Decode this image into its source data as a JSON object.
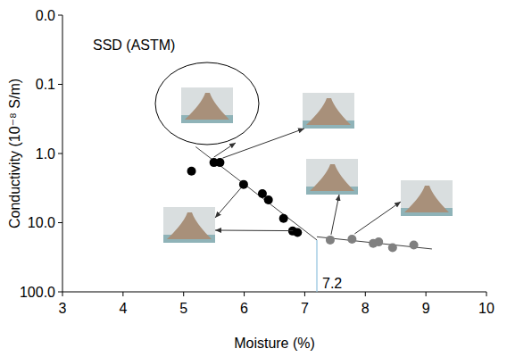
{
  "chart_data": {
    "type": "scatter",
    "x_label": "Moisture (%)",
    "y_label": "Conductivity (10⁻⁸ S/m)",
    "log": "y",
    "grid": false,
    "xlim": [
      3,
      10
    ],
    "xticks": [
      3,
      4,
      5,
      6,
      7,
      8,
      9,
      10
    ],
    "ylim": [
      100,
      0.01
    ],
    "yticks": [
      {
        "value": 0.01,
        "label": "0.0"
      },
      {
        "value": 0.1,
        "label": "0.1"
      },
      {
        "value": 1,
        "label": "1.0"
      },
      {
        "value": 10,
        "label": "10.0"
      },
      {
        "value": 100,
        "label": "100.0"
      }
    ],
    "series": [
      {
        "type": "scatter",
        "color": "#000000",
        "marker": "circle",
        "x": [
          5.13,
          5.5,
          5.6,
          5.99,
          6.3,
          6.4,
          6.65,
          6.8,
          6.88
        ],
        "values": [
          1.8,
          1.35,
          1.35,
          2.8,
          3.8,
          4.7,
          8.7,
          13.2,
          13.9
        ]
      },
      {
        "type": "scatter",
        "color": "#808080",
        "marker": "circle",
        "x": [
          7.42,
          7.78,
          8.13,
          8.22,
          8.45,
          8.8
        ],
        "values": [
          17.8,
          17.3,
          20,
          19,
          23,
          21
        ]
      },
      {
        "type": "line",
        "color": "#404040",
        "line_style": "solid",
        "x": [
          5.2,
          7.2
        ],
        "values": [
          0.8,
          17.8
        ]
      },
      {
        "type": "line",
        "color": "#404040",
        "line_style": "solid",
        "x": [
          7.2,
          9.1
        ],
        "values": [
          16,
          24
        ]
      }
    ],
    "annotations": [
      {
        "text": "SSD (ASTM)"
      },
      {
        "text": "7.2",
        "x": 7.2
      }
    ]
  }
}
